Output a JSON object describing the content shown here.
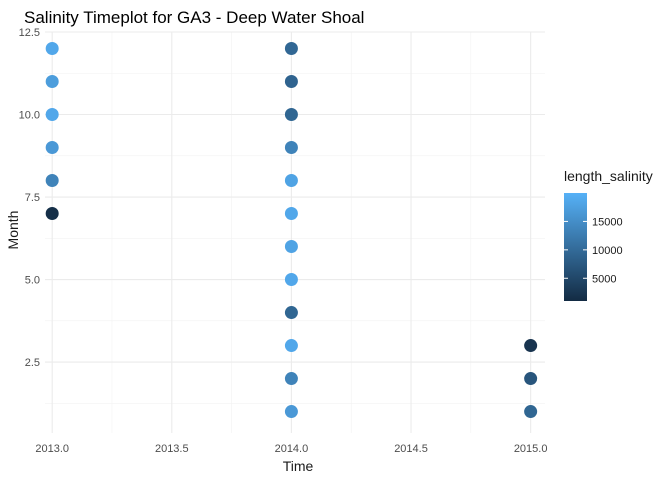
{
  "chart_data": {
    "type": "scatter",
    "title": "Salinity Timeplot for GA3 - Deep Water Shoal",
    "xlabel": "Time",
    "ylabel": "Month",
    "xlim": [
      2012.97,
      2015.06
    ],
    "ylim": [
      0.35,
      12.5
    ],
    "x_ticks": [
      2013.0,
      2013.5,
      2014.0,
      2014.5,
      2015.0
    ],
    "x_tick_labels": [
      "2013.0",
      "2013.5",
      "2014.0",
      "2014.5",
      "2015.0"
    ],
    "y_ticks": [
      2.5,
      5.0,
      7.5,
      10.0,
      12.5
    ],
    "y_tick_labels": [
      "2.5",
      "5.0",
      "7.5",
      "10.0",
      "12.5"
    ],
    "grid": true,
    "legend": {
      "title": "length_salinity",
      "position": "right",
      "min": 1000,
      "max": 20000,
      "breaks": [
        5000,
        10000,
        15000
      ],
      "break_labels": [
        "5000",
        "10000",
        "15000"
      ],
      "low_color": "#132B43",
      "high_color": "#56B1F7"
    },
    "points": [
      {
        "x": 2013.0,
        "y": 12,
        "length_salinity": 18600
      },
      {
        "x": 2013.0,
        "y": 11,
        "length_salinity": 17200
      },
      {
        "x": 2013.0,
        "y": 10,
        "length_salinity": 18600
      },
      {
        "x": 2013.0,
        "y": 9,
        "length_salinity": 16500
      },
      {
        "x": 2013.0,
        "y": 8,
        "length_salinity": 13500
      },
      {
        "x": 2013.0,
        "y": 7,
        "length_salinity": 1500
      },
      {
        "x": 2014.0,
        "y": 12,
        "length_salinity": 9500
      },
      {
        "x": 2014.0,
        "y": 11,
        "length_salinity": 9000
      },
      {
        "x": 2014.0,
        "y": 10,
        "length_salinity": 9300
      },
      {
        "x": 2014.0,
        "y": 9,
        "length_salinity": 13500
      },
      {
        "x": 2014.0,
        "y": 8,
        "length_salinity": 18000
      },
      {
        "x": 2014.0,
        "y": 7,
        "length_salinity": 18600
      },
      {
        "x": 2014.0,
        "y": 6,
        "length_salinity": 18000
      },
      {
        "x": 2014.0,
        "y": 5,
        "length_salinity": 18600
      },
      {
        "x": 2014.0,
        "y": 4,
        "length_salinity": 9300
      },
      {
        "x": 2014.0,
        "y": 3,
        "length_salinity": 18600
      },
      {
        "x": 2014.0,
        "y": 2,
        "length_salinity": 13500
      },
      {
        "x": 2014.0,
        "y": 1,
        "length_salinity": 16500
      },
      {
        "x": 2015.0,
        "y": 3,
        "length_salinity": 2300
      },
      {
        "x": 2015.0,
        "y": 2,
        "length_salinity": 7000
      },
      {
        "x": 2015.0,
        "y": 1,
        "length_salinity": 9300
      }
    ]
  }
}
